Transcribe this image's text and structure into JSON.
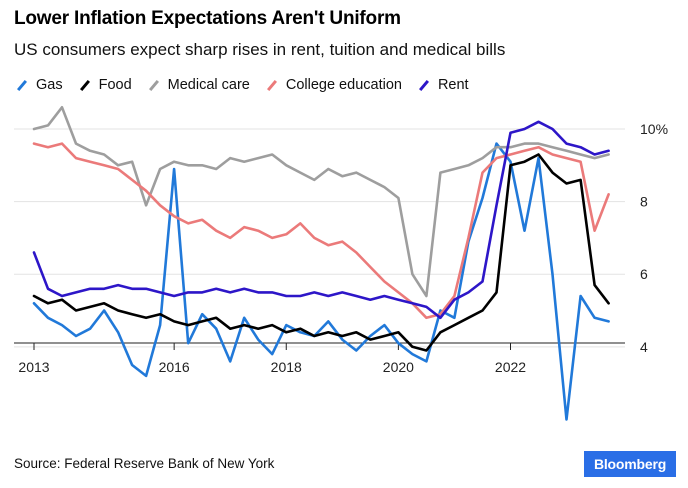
{
  "header": {
    "title": "Lower Inflation Expectations Aren't Uniform",
    "subtitle": "US consumers expect sharp rises in rent, tuition and medical bills"
  },
  "footer": {
    "source": "Source: Federal Reserve Bank of New York",
    "brand": "Bloomberg"
  },
  "chart_data": {
    "type": "line",
    "title": "Lower Inflation Expectations Aren't Uniform",
    "subtitle": "US consumers expect sharp rises in rent, tuition and medical bills",
    "xlabel": "",
    "ylabel": "",
    "x_ticks": [
      "2013",
      "2016",
      "2018",
      "2020",
      "2022"
    ],
    "x_tick_values": [
      2013.0,
      2015.5,
      2017.5,
      2019.5,
      2021.5
    ],
    "y_ticks": [
      "4",
      "6",
      "8",
      "10%"
    ],
    "y_tick_values": [
      4,
      6,
      8,
      10
    ],
    "ylim": [
      3.5,
      10.8
    ],
    "xlim": [
      2013.0,
      2023.4
    ],
    "grid": "horizontal",
    "legend_position": "top-left",
    "x": [
      2013.0,
      2013.25,
      2013.5,
      2013.75,
      2014.0,
      2014.25,
      2014.5,
      2014.75,
      2015.0,
      2015.25,
      2015.5,
      2015.75,
      2016.0,
      2016.25,
      2016.5,
      2016.75,
      2017.0,
      2017.25,
      2017.5,
      2017.75,
      2018.0,
      2018.25,
      2018.5,
      2018.75,
      2019.0,
      2019.25,
      2019.5,
      2019.75,
      2020.0,
      2020.25,
      2020.5,
      2020.75,
      2021.0,
      2021.25,
      2021.5,
      2021.75,
      2022.0,
      2022.25,
      2022.5,
      2022.75,
      2023.0,
      2023.25
    ],
    "series": [
      {
        "name": "Gas",
        "color": "#2179d9",
        "values": [
          5.2,
          4.8,
          4.6,
          4.3,
          4.5,
          5.0,
          4.4,
          3.5,
          3.2,
          4.6,
          8.9,
          4.1,
          4.9,
          4.5,
          3.6,
          4.8,
          4.2,
          3.8,
          4.6,
          4.4,
          4.3,
          4.7,
          4.2,
          3.9,
          4.3,
          4.6,
          4.1,
          3.8,
          3.6,
          5.0,
          4.8,
          6.9,
          8.1,
          9.6,
          9.1,
          7.2,
          9.2,
          6.0,
          2.0,
          5.4,
          4.8,
          4.7
        ]
      },
      {
        "name": "Food",
        "color": "#000000",
        "values": [
          5.4,
          5.2,
          5.3,
          5.0,
          5.1,
          5.2,
          5.0,
          4.9,
          4.8,
          4.9,
          4.7,
          4.6,
          4.7,
          4.8,
          4.5,
          4.6,
          4.5,
          4.6,
          4.4,
          4.5,
          4.3,
          4.4,
          4.3,
          4.4,
          4.2,
          4.3,
          4.4,
          4.0,
          3.9,
          4.4,
          4.6,
          4.8,
          5.0,
          5.5,
          9.0,
          9.1,
          9.3,
          8.8,
          8.5,
          8.6,
          5.7,
          5.2
        ]
      },
      {
        "name": "Medical care",
        "color": "#9e9e9e",
        "values": [
          10.0,
          10.1,
          10.6,
          9.6,
          9.4,
          9.3,
          9.0,
          9.1,
          7.9,
          8.9,
          9.1,
          9.0,
          9.0,
          8.9,
          9.2,
          9.1,
          9.2,
          9.3,
          9.0,
          8.8,
          8.6,
          8.9,
          8.7,
          8.8,
          8.6,
          8.4,
          8.1,
          6.0,
          5.4,
          8.8,
          8.9,
          9.0,
          9.2,
          9.5,
          9.5,
          9.6,
          9.6,
          9.5,
          9.4,
          9.3,
          9.2,
          9.3
        ]
      },
      {
        "name": "College education",
        "color": "#eb7a7a",
        "values": [
          9.6,
          9.5,
          9.6,
          9.2,
          9.1,
          9.0,
          8.9,
          8.6,
          8.3,
          7.9,
          7.6,
          7.4,
          7.5,
          7.2,
          7.0,
          7.3,
          7.2,
          7.0,
          7.1,
          7.4,
          7.0,
          6.8,
          6.9,
          6.6,
          6.2,
          5.8,
          5.5,
          5.2,
          4.8,
          4.9,
          5.4,
          7.0,
          8.8,
          9.2,
          9.3,
          9.4,
          9.5,
          9.3,
          9.2,
          9.1,
          7.2,
          8.2
        ]
      },
      {
        "name": "Rent",
        "color": "#2d16c8",
        "values": [
          6.6,
          5.6,
          5.4,
          5.5,
          5.6,
          5.6,
          5.7,
          5.6,
          5.6,
          5.5,
          5.4,
          5.5,
          5.5,
          5.6,
          5.5,
          5.6,
          5.5,
          5.5,
          5.4,
          5.4,
          5.5,
          5.4,
          5.5,
          5.4,
          5.3,
          5.4,
          5.3,
          5.2,
          5.1,
          4.8,
          5.3,
          5.5,
          5.8,
          7.9,
          9.9,
          10.0,
          10.2,
          10.0,
          9.6,
          9.5,
          9.3,
          9.4
        ]
      }
    ]
  }
}
